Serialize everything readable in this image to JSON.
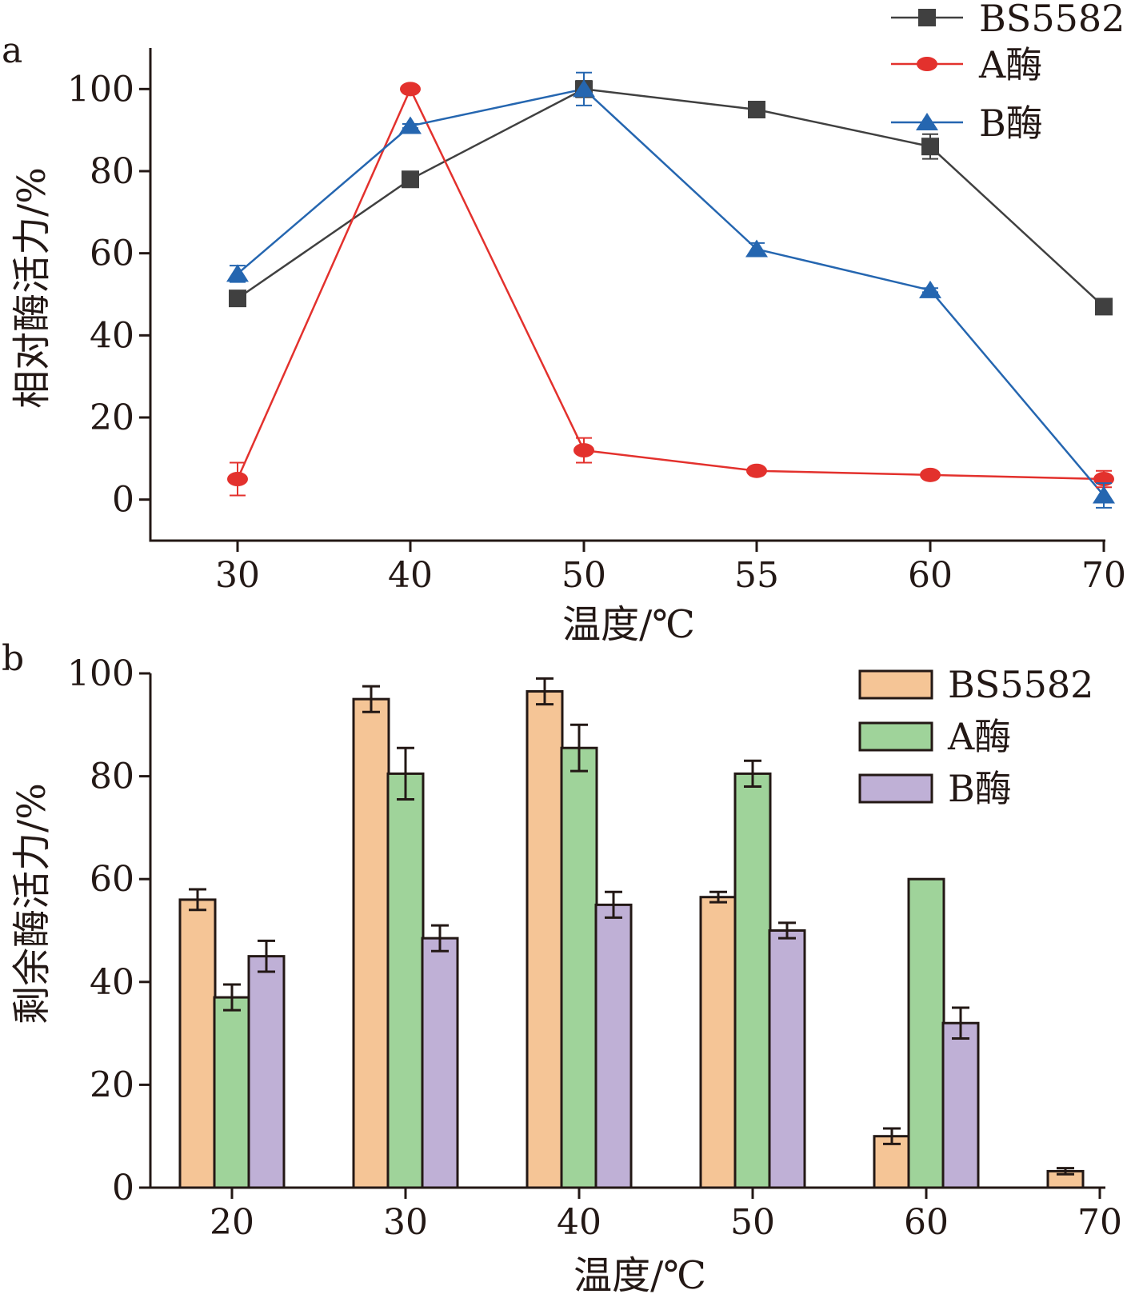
{
  "chart_data": [
    {
      "panel": "a",
      "type": "line",
      "categories": [
        "30",
        "40",
        "50",
        "55",
        "60",
        "70"
      ],
      "xlabel": "温度/℃",
      "ylabel": "相对酶活力/%",
      "ylim": [
        -10,
        110
      ],
      "yticks": [
        0,
        20,
        40,
        60,
        80,
        100
      ],
      "legend_position": "top-right",
      "series": [
        {
          "name": "BS5582",
          "color": "#404040",
          "marker": "square",
          "values": [
            49,
            78,
            100,
            95,
            86,
            47
          ],
          "errors": [
            1.5,
            0.5,
            2,
            1.5,
            3,
            0.5
          ]
        },
        {
          "name": "A酶",
          "color": "#e3312d",
          "marker": "circle",
          "values": [
            5,
            100,
            12,
            7,
            6,
            5
          ],
          "errors": [
            4,
            0.5,
            3,
            0.5,
            0.5,
            2
          ]
        },
        {
          "name": "B酶",
          "color": "#2566b0",
          "marker": "triangle",
          "values": [
            55,
            91,
            100,
            61,
            51,
            1
          ],
          "errors": [
            2,
            0.5,
            4,
            1.5,
            0.5,
            3
          ]
        }
      ]
    },
    {
      "panel": "b",
      "type": "bar",
      "categories": [
        "20",
        "30",
        "40",
        "50",
        "60",
        "70"
      ],
      "xlabel": "温度/℃",
      "ylabel": "剩余酶活力/%",
      "ylim": [
        0,
        100
      ],
      "yticks": [
        0,
        20,
        40,
        60,
        80,
        100
      ],
      "legend_position": "top-right",
      "series": [
        {
          "name": "BS5582",
          "color": "#f5c596",
          "values": [
            56,
            95,
            96.5,
            56.5,
            10,
            3.2
          ],
          "errors": [
            2,
            2.5,
            2.5,
            1,
            1.5,
            0.6
          ]
        },
        {
          "name": "A酶",
          "color": "#9fd39a",
          "values": [
            37,
            80.5,
            85.5,
            80.5,
            60,
            null
          ],
          "errors": [
            2.5,
            5,
            4.5,
            2.5,
            0,
            null
          ]
        },
        {
          "name": "B酶",
          "color": "#bfb0d6",
          "values": [
            45,
            48.5,
            55,
            50,
            32,
            null
          ],
          "errors": [
            3,
            2.5,
            2.5,
            1.5,
            3,
            null
          ]
        }
      ]
    }
  ]
}
